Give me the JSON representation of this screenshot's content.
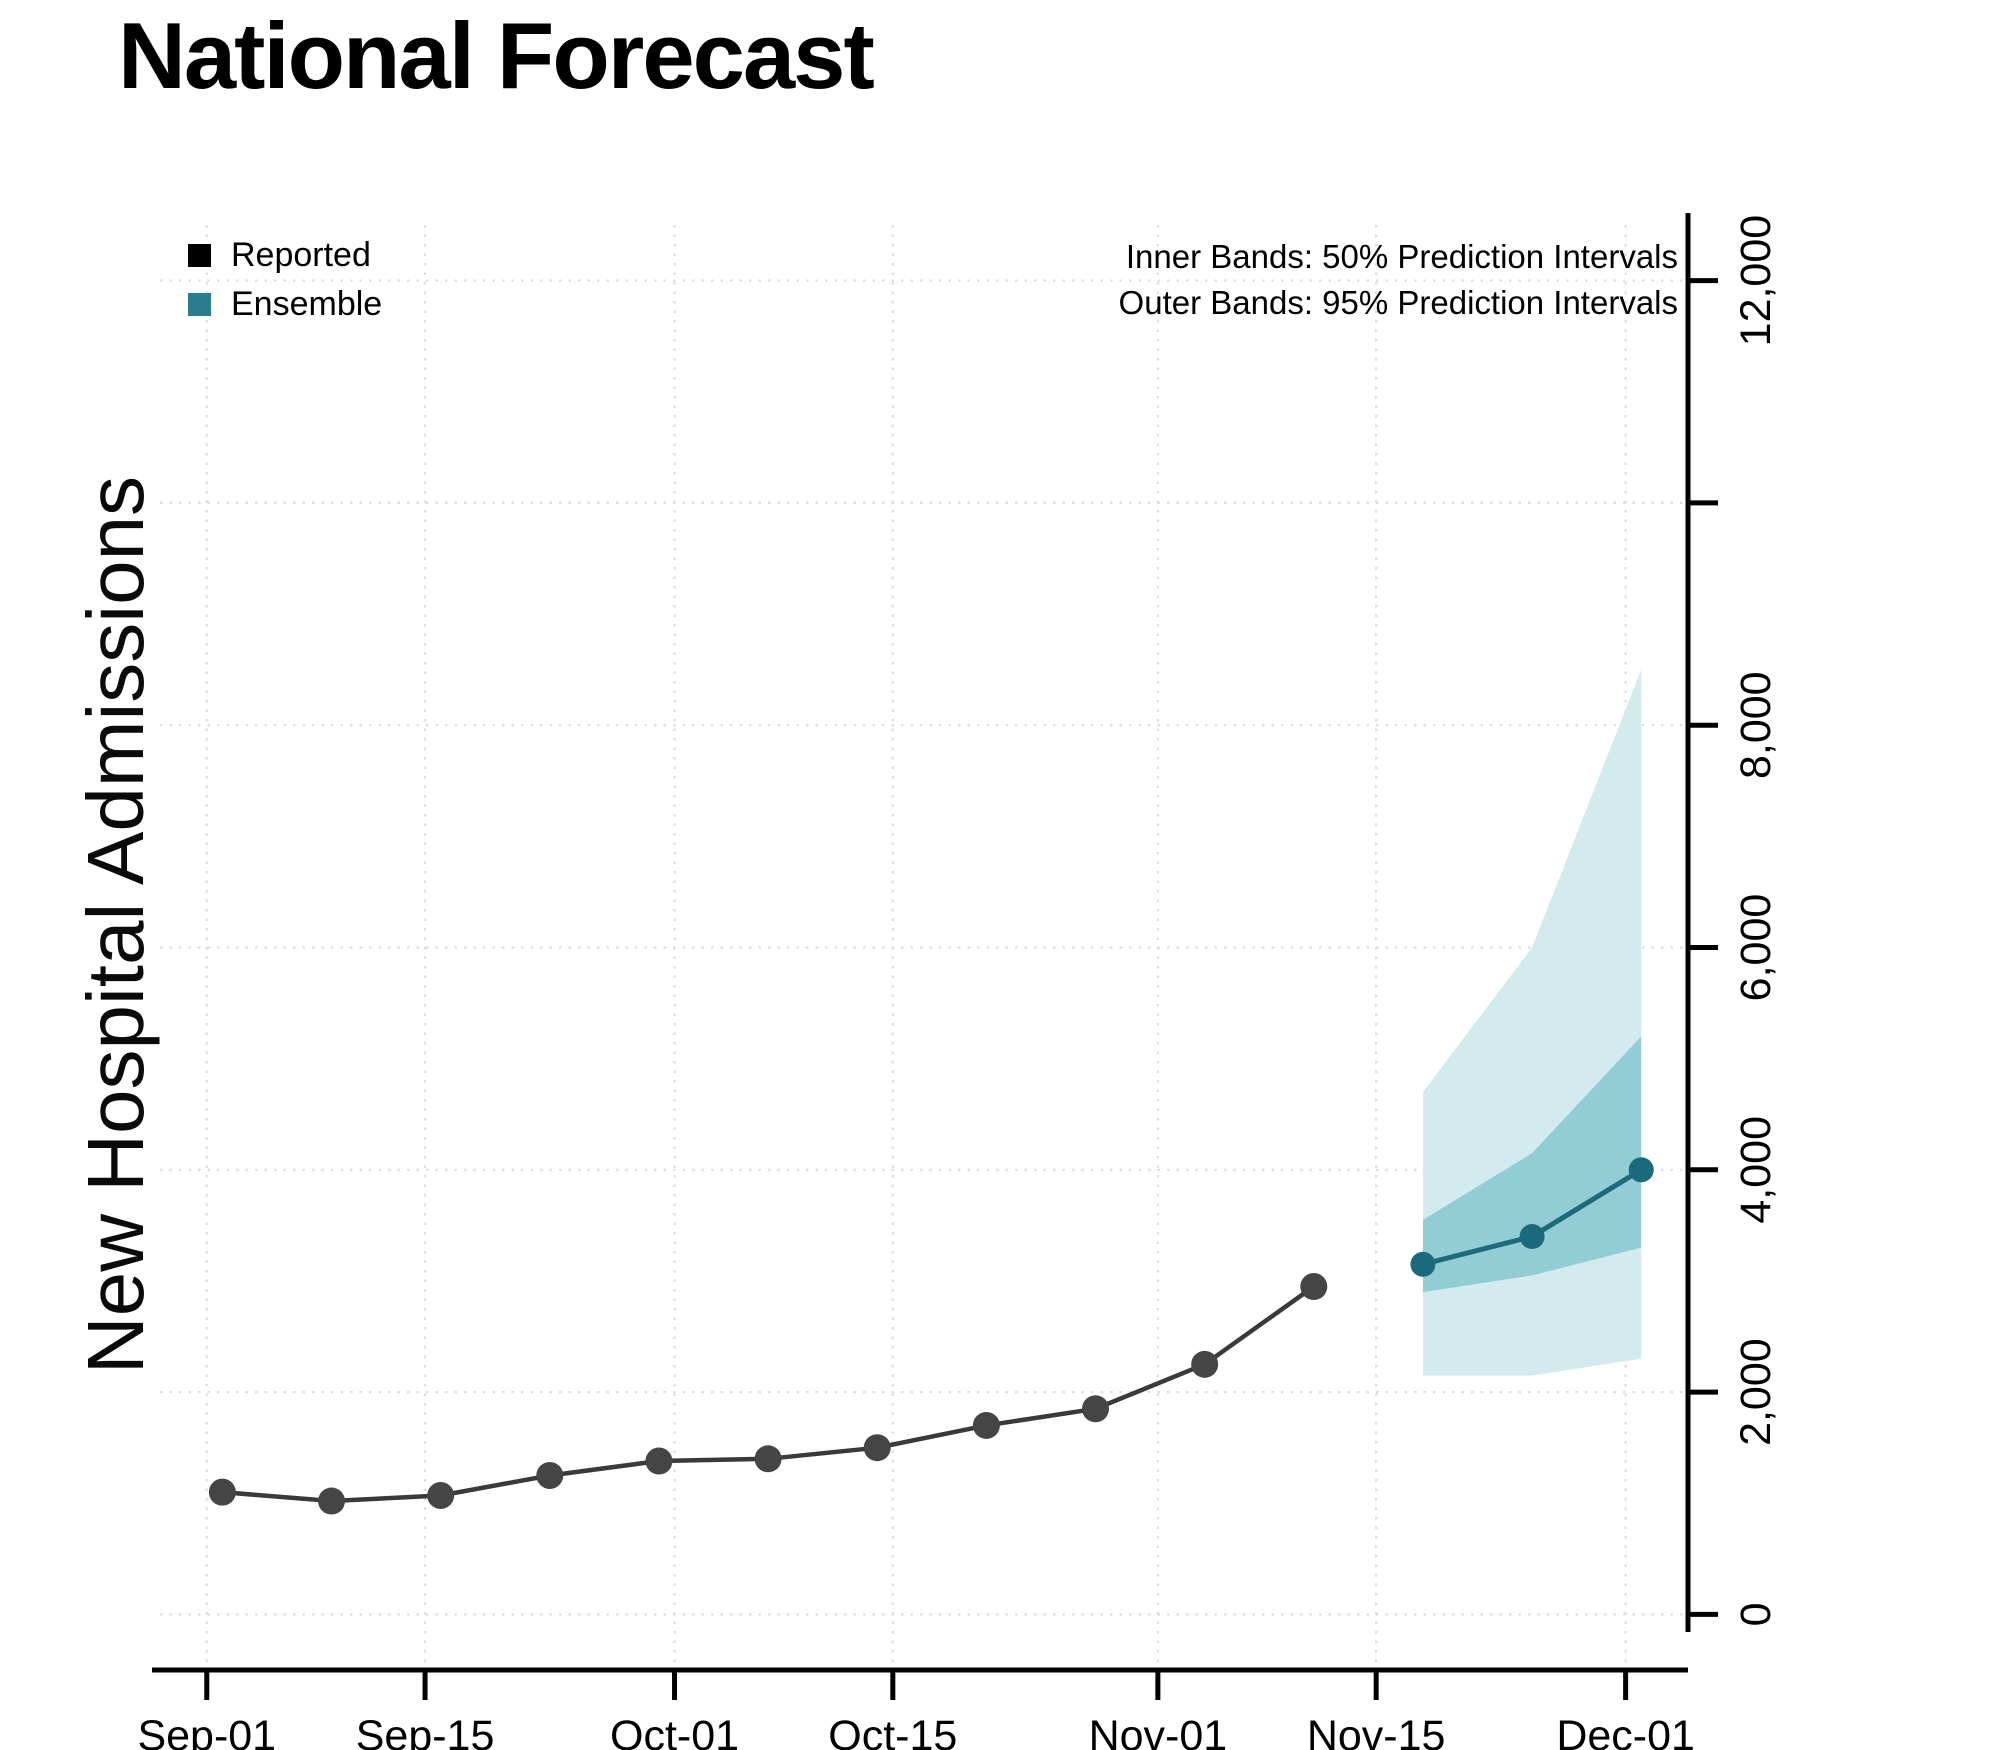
{
  "title": "National Forecast",
  "legend": {
    "items": [
      {
        "label": "Reported",
        "color": "#000000"
      },
      {
        "label": "Ensemble",
        "color": "#2a7d8d"
      }
    ]
  },
  "annotations": {
    "line1": "Inner Bands: 50% Prediction Intervals",
    "line2": "Outer Bands: 95% Prediction Intervals"
  },
  "chart_data": {
    "type": "line",
    "title": "National Forecast",
    "xlabel": "",
    "ylabel": "New Hospital Admissions",
    "x_tick_labels": [
      "Sep-01",
      "Sep-15",
      "Oct-01",
      "Oct-15",
      "Nov-01",
      "Nov-15",
      "Dec-01"
    ],
    "x_tick_days": [
      0,
      14,
      30,
      44,
      61,
      75,
      91
    ],
    "x_range_days": [
      -3,
      95
    ],
    "y_ticks": [
      0,
      2000,
      4000,
      6000,
      8000,
      10000,
      12000
    ],
    "y_tick_labels": [
      "0",
      "2,000",
      "4,000",
      "6,000",
      "8,000",
      "",
      "12,000"
    ],
    "y_range": [
      -500,
      12500
    ],
    "ylim": [
      0,
      12000
    ],
    "grid": true,
    "legend_position": "top-left-inside",
    "series": [
      {
        "name": "Reported",
        "color": "#3a3a3a",
        "point_color": "#454545",
        "dates": [
          "Sep-02",
          "Sep-09",
          "Sep-16",
          "Sep-23",
          "Sep-30",
          "Oct-07",
          "Oct-14",
          "Oct-21",
          "Oct-28",
          "Nov-04",
          "Nov-11"
        ],
        "days": [
          1,
          8,
          15,
          22,
          29,
          36,
          43,
          50,
          57,
          64,
          71
        ],
        "values": [
          1100,
          1020,
          1070,
          1250,
          1380,
          1400,
          1500,
          1700,
          1850,
          2250,
          2950
        ]
      },
      {
        "name": "Ensemble",
        "color": "#1c6b7d",
        "point_color": "#1c6b7d",
        "dates": [
          "Nov-18",
          "Nov-25",
          "Dec-02"
        ],
        "days": [
          78,
          85,
          92
        ],
        "values": [
          3150,
          3400,
          4000
        ],
        "bands": {
          "inner": {
            "label": "50% Prediction Interval",
            "color": "#92cdd6",
            "low": [
              2900,
              3050,
              3300
            ],
            "high": [
              3550,
              4150,
              5200
            ]
          },
          "outer": {
            "label": "95% Prediction Interval",
            "color": "#d3eaee",
            "low": [
              2150,
              2150,
              2300
            ],
            "high": [
              4700,
              6000,
              8500
            ]
          }
        }
      }
    ]
  }
}
